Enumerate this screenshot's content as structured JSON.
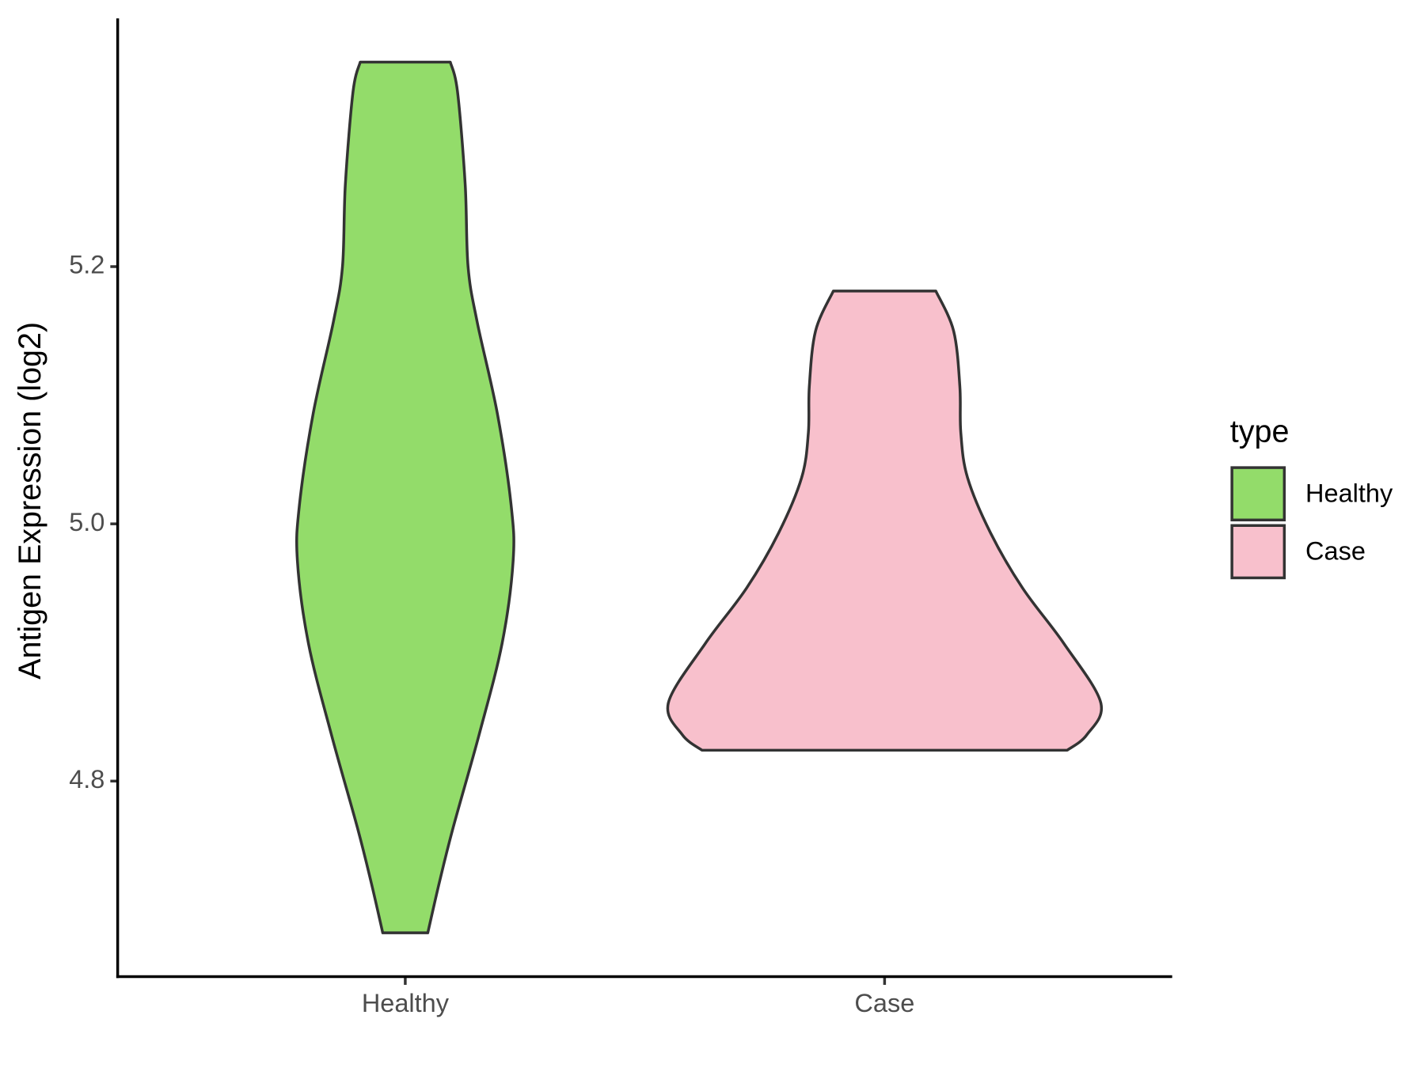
{
  "chart_data": {
    "type": "violin",
    "y_label": "Antigen Expression (log2)",
    "categories": [
      "Healthy",
      "Case"
    ],
    "legend_title": "type",
    "legend_position": "right",
    "ylim": [
      4.648,
      5.393
    ],
    "yticks": [
      {
        "value": 4.8,
        "label": "4.8"
      },
      {
        "value": 5.0,
        "label": "5.0"
      },
      {
        "value": 5.2,
        "label": "5.2"
      }
    ],
    "series": [
      {
        "name": "Healthy",
        "color": "#93dc6a",
        "y": [
          5.359,
          5.336,
          5.264,
          5.2,
          5.157,
          5.086,
          5.014,
          4.971,
          4.907,
          4.836,
          4.764,
          4.721,
          4.682
        ],
        "width": [
          0.094,
          0.109,
          0.125,
          0.131,
          0.15,
          0.192,
          0.221,
          0.225,
          0.202,
          0.154,
          0.1,
          0.071,
          0.047
        ]
      },
      {
        "name": "Case",
        "color": "#f8c0cc",
        "y": [
          5.181,
          5.15,
          5.107,
          5.071,
          5.036,
          4.993,
          4.95,
          4.907,
          4.861,
          4.836,
          4.824
        ],
        "width": [
          0.107,
          0.144,
          0.157,
          0.159,
          0.173,
          0.221,
          0.288,
          0.374,
          0.451,
          0.422,
          0.381
        ]
      }
    ]
  }
}
